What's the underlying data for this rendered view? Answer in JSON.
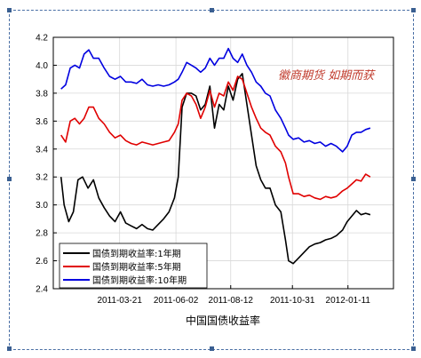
{
  "chart_data": {
    "type": "line",
    "title": "",
    "xlabel": "中国国债收益率",
    "ylabel": "",
    "watermark": "徽商期货 如期而获",
    "ylim": [
      2.4,
      4.2
    ],
    "yticks": [
      "4.2",
      "4.0",
      "3.8",
      "3.6",
      "3.4",
      "3.2",
      "3.0",
      "2.8",
      "2.6",
      "2.4"
    ],
    "xlim": [
      "2010-12-25",
      "2012-03-10"
    ],
    "xticks": [
      "2011-03-21",
      "2011-06-02",
      "2011-08-12",
      "2011-10-31",
      "2012-01-11"
    ],
    "legend_position": "bottom-left",
    "grid": true,
    "series": [
      {
        "name": "国债到期收益率:1年期",
        "color": "#000000",
        "points": [
          [
            "2011-01-04",
            3.2
          ],
          [
            "2011-01-08",
            3.0
          ],
          [
            "2011-01-14",
            2.88
          ],
          [
            "2011-01-20",
            2.95
          ],
          [
            "2011-01-26",
            3.18
          ],
          [
            "2011-02-01",
            3.2
          ],
          [
            "2011-02-08",
            3.12
          ],
          [
            "2011-02-15",
            3.18
          ],
          [
            "2011-02-22",
            3.05
          ],
          [
            "2011-03-01",
            2.98
          ],
          [
            "2011-03-08",
            2.92
          ],
          [
            "2011-03-15",
            2.88
          ],
          [
            "2011-03-22",
            2.95
          ],
          [
            "2011-03-29",
            2.87
          ],
          [
            "2011-04-05",
            2.85
          ],
          [
            "2011-04-12",
            2.83
          ],
          [
            "2011-04-19",
            2.86
          ],
          [
            "2011-04-26",
            2.83
          ],
          [
            "2011-05-03",
            2.82
          ],
          [
            "2011-05-10",
            2.86
          ],
          [
            "2011-05-17",
            2.9
          ],
          [
            "2011-05-24",
            2.95
          ],
          [
            "2011-05-31",
            3.05
          ],
          [
            "2011-06-05",
            3.2
          ],
          [
            "2011-06-10",
            3.7
          ],
          [
            "2011-06-16",
            3.8
          ],
          [
            "2011-06-22",
            3.8
          ],
          [
            "2011-06-28",
            3.78
          ],
          [
            "2011-07-04",
            3.68
          ],
          [
            "2011-07-10",
            3.72
          ],
          [
            "2011-07-16",
            3.85
          ],
          [
            "2011-07-22",
            3.55
          ],
          [
            "2011-07-28",
            3.72
          ],
          [
            "2011-08-03",
            3.68
          ],
          [
            "2011-08-09",
            3.85
          ],
          [
            "2011-08-15",
            3.75
          ],
          [
            "2011-08-21",
            3.9
          ],
          [
            "2011-08-27",
            3.94
          ],
          [
            "2011-09-02",
            3.72
          ],
          [
            "2011-09-08",
            3.5
          ],
          [
            "2011-09-14",
            3.28
          ],
          [
            "2011-09-20",
            3.18
          ],
          [
            "2011-09-26",
            3.12
          ],
          [
            "2011-10-02",
            3.12
          ],
          [
            "2011-10-09",
            3.0
          ],
          [
            "2011-10-16",
            2.95
          ],
          [
            "2011-10-22",
            2.75
          ],
          [
            "2011-10-26",
            2.6
          ],
          [
            "2011-11-01",
            2.58
          ],
          [
            "2011-11-08",
            2.62
          ],
          [
            "2011-11-15",
            2.66
          ],
          [
            "2011-11-22",
            2.7
          ],
          [
            "2011-11-29",
            2.72
          ],
          [
            "2011-12-06",
            2.73
          ],
          [
            "2011-12-13",
            2.75
          ],
          [
            "2011-12-20",
            2.76
          ],
          [
            "2011-12-27",
            2.78
          ],
          [
            "2012-01-04",
            2.82
          ],
          [
            "2012-01-10",
            2.88
          ],
          [
            "2012-01-16",
            2.92
          ],
          [
            "2012-01-22",
            2.96
          ],
          [
            "2012-01-28",
            2.93
          ],
          [
            "2012-02-03",
            2.94
          ],
          [
            "2012-02-09",
            2.93
          ]
        ]
      },
      {
        "name": "国债到期收益率:5年期",
        "color": "#e00000",
        "points": [
          [
            "2011-01-04",
            3.5
          ],
          [
            "2011-01-10",
            3.45
          ],
          [
            "2011-01-16",
            3.6
          ],
          [
            "2011-01-22",
            3.62
          ],
          [
            "2011-01-28",
            3.58
          ],
          [
            "2011-02-03",
            3.62
          ],
          [
            "2011-02-09",
            3.7
          ],
          [
            "2011-02-15",
            3.7
          ],
          [
            "2011-02-22",
            3.62
          ],
          [
            "2011-03-01",
            3.58
          ],
          [
            "2011-03-08",
            3.52
          ],
          [
            "2011-03-15",
            3.48
          ],
          [
            "2011-03-22",
            3.5
          ],
          [
            "2011-03-29",
            3.46
          ],
          [
            "2011-04-05",
            3.44
          ],
          [
            "2011-04-12",
            3.43
          ],
          [
            "2011-04-19",
            3.45
          ],
          [
            "2011-04-26",
            3.44
          ],
          [
            "2011-05-03",
            3.43
          ],
          [
            "2011-05-10",
            3.44
          ],
          [
            "2011-05-17",
            3.45
          ],
          [
            "2011-05-24",
            3.46
          ],
          [
            "2011-05-31",
            3.52
          ],
          [
            "2011-06-05",
            3.58
          ],
          [
            "2011-06-10",
            3.75
          ],
          [
            "2011-06-16",
            3.8
          ],
          [
            "2011-06-22",
            3.78
          ],
          [
            "2011-06-28",
            3.72
          ],
          [
            "2011-07-04",
            3.62
          ],
          [
            "2011-07-10",
            3.7
          ],
          [
            "2011-07-16",
            3.82
          ],
          [
            "2011-07-22",
            3.7
          ],
          [
            "2011-07-28",
            3.8
          ],
          [
            "2011-08-03",
            3.78
          ],
          [
            "2011-08-09",
            3.88
          ],
          [
            "2011-08-15",
            3.82
          ],
          [
            "2011-08-21",
            3.92
          ],
          [
            "2011-08-27",
            3.9
          ],
          [
            "2011-09-02",
            3.8
          ],
          [
            "2011-09-08",
            3.7
          ],
          [
            "2011-09-14",
            3.62
          ],
          [
            "2011-09-20",
            3.55
          ],
          [
            "2011-09-26",
            3.52
          ],
          [
            "2011-10-02",
            3.5
          ],
          [
            "2011-10-09",
            3.42
          ],
          [
            "2011-10-16",
            3.38
          ],
          [
            "2011-10-22",
            3.3
          ],
          [
            "2011-10-26",
            3.2
          ],
          [
            "2011-11-01",
            3.08
          ],
          [
            "2011-11-08",
            3.08
          ],
          [
            "2011-11-15",
            3.06
          ],
          [
            "2011-11-22",
            3.07
          ],
          [
            "2011-11-29",
            3.05
          ],
          [
            "2011-12-06",
            3.04
          ],
          [
            "2011-12-13",
            3.06
          ],
          [
            "2011-12-20",
            3.05
          ],
          [
            "2011-12-27",
            3.06
          ],
          [
            "2012-01-04",
            3.1
          ],
          [
            "2012-01-10",
            3.12
          ],
          [
            "2012-01-16",
            3.15
          ],
          [
            "2012-01-22",
            3.18
          ],
          [
            "2012-01-28",
            3.17
          ],
          [
            "2012-02-03",
            3.22
          ],
          [
            "2012-02-09",
            3.2
          ]
        ]
      },
      {
        "name": "国债到期收益率:10年期",
        "color": "#0000e0",
        "points": [
          [
            "2011-01-04",
            3.83
          ],
          [
            "2011-01-10",
            3.86
          ],
          [
            "2011-01-16",
            3.98
          ],
          [
            "2011-01-22",
            4.0
          ],
          [
            "2011-01-28",
            3.98
          ],
          [
            "2011-02-03",
            4.08
          ],
          [
            "2011-02-09",
            4.11
          ],
          [
            "2011-02-15",
            4.05
          ],
          [
            "2011-02-22",
            4.05
          ],
          [
            "2011-03-01",
            3.98
          ],
          [
            "2011-03-08",
            3.92
          ],
          [
            "2011-03-15",
            3.9
          ],
          [
            "2011-03-22",
            3.92
          ],
          [
            "2011-03-29",
            3.88
          ],
          [
            "2011-04-05",
            3.88
          ],
          [
            "2011-04-12",
            3.87
          ],
          [
            "2011-04-19",
            3.9
          ],
          [
            "2011-04-26",
            3.86
          ],
          [
            "2011-05-03",
            3.85
          ],
          [
            "2011-05-10",
            3.86
          ],
          [
            "2011-05-17",
            3.85
          ],
          [
            "2011-05-24",
            3.86
          ],
          [
            "2011-05-31",
            3.88
          ],
          [
            "2011-06-05",
            3.9
          ],
          [
            "2011-06-10",
            3.95
          ],
          [
            "2011-06-16",
            4.02
          ],
          [
            "2011-06-22",
            4.0
          ],
          [
            "2011-06-28",
            3.98
          ],
          [
            "2011-07-04",
            3.95
          ],
          [
            "2011-07-10",
            3.98
          ],
          [
            "2011-07-16",
            4.05
          ],
          [
            "2011-07-22",
            4.0
          ],
          [
            "2011-07-28",
            4.05
          ],
          [
            "2011-08-03",
            4.05
          ],
          [
            "2011-08-09",
            4.12
          ],
          [
            "2011-08-15",
            4.05
          ],
          [
            "2011-08-21",
            4.02
          ],
          [
            "2011-08-27",
            4.08
          ],
          [
            "2011-09-02",
            4.0
          ],
          [
            "2011-09-08",
            3.95
          ],
          [
            "2011-09-14",
            3.88
          ],
          [
            "2011-09-20",
            3.85
          ],
          [
            "2011-09-26",
            3.8
          ],
          [
            "2011-10-02",
            3.78
          ],
          [
            "2011-10-09",
            3.68
          ],
          [
            "2011-10-16",
            3.62
          ],
          [
            "2011-10-22",
            3.55
          ],
          [
            "2011-10-26",
            3.5
          ],
          [
            "2011-11-01",
            3.47
          ],
          [
            "2011-11-08",
            3.48
          ],
          [
            "2011-11-15",
            3.45
          ],
          [
            "2011-11-22",
            3.46
          ],
          [
            "2011-11-29",
            3.44
          ],
          [
            "2011-12-06",
            3.45
          ],
          [
            "2011-12-13",
            3.42
          ],
          [
            "2011-12-20",
            3.44
          ],
          [
            "2011-12-27",
            3.42
          ],
          [
            "2012-01-04",
            3.38
          ],
          [
            "2012-01-10",
            3.42
          ],
          [
            "2012-01-16",
            3.5
          ],
          [
            "2012-01-22",
            3.52
          ],
          [
            "2012-01-28",
            3.52
          ],
          [
            "2012-02-03",
            3.54
          ],
          [
            "2012-02-09",
            3.55
          ]
        ]
      }
    ]
  }
}
